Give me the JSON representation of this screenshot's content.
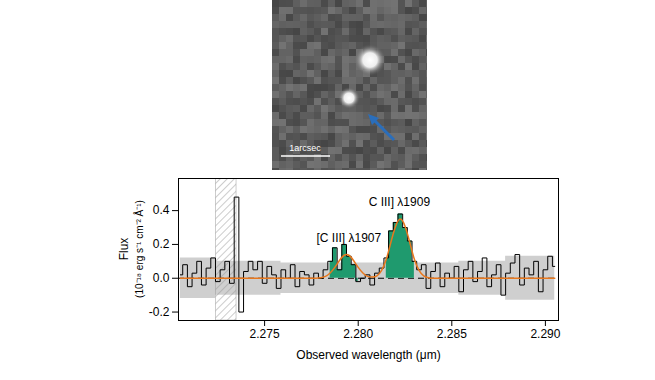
{
  "image": {
    "scale_label": "1arcsec"
  },
  "chart_data": {
    "type": "line",
    "xlabel": "Observed wavelength (μm)",
    "ylabel": [
      "Flux",
      "(10⁻¹⁸ erg s⁻¹ cm⁻² Å⁻¹)"
    ],
    "color": "#000000",
    "x": [
      2.2705,
      2.27075,
      2.271,
      2.27125,
      2.2715,
      2.27175,
      2.272,
      2.27225,
      2.2725,
      2.27275,
      2.273,
      2.27325,
      2.2735,
      2.27375,
      2.274,
      2.27425,
      2.2745,
      2.27475,
      2.275,
      2.27525,
      2.2755,
      2.27575,
      2.276,
      2.27625,
      2.2765,
      2.27675,
      2.277,
      2.27725,
      2.2775,
      2.27775,
      2.278,
      2.27825,
      2.2785,
      2.27875,
      2.279,
      2.27925,
      2.2795,
      2.27975,
      2.28,
      2.28025,
      2.2805,
      2.28075,
      2.281,
      2.28125,
      2.2815,
      2.28175,
      2.282,
      2.28225,
      2.2825,
      2.28275,
      2.283,
      2.28325,
      2.2835,
      2.28375,
      2.284,
      2.28425,
      2.2845,
      2.28475,
      2.285,
      2.28525,
      2.2855,
      2.28575,
      2.286,
      2.28625,
      2.2865,
      2.28675,
      2.287,
      2.28725,
      2.2875,
      2.28775,
      2.288,
      2.28825,
      2.2885,
      2.28875,
      2.289,
      2.28925,
      2.2895,
      2.28975,
      2.29,
      2.29025,
      2.2905
    ],
    "values": [
      0.02,
      0.08,
      -0.05,
      0.03,
      0.1,
      -0.04,
      0.06,
      0.12,
      -0.02,
      0.05,
      0.1,
      -0.03,
      0.48,
      -0.2,
      0.04,
      0.1,
      0.05,
      0.1,
      -0.03,
      0.07,
      0.02,
      -0.06,
      0.05,
      0.0,
      0.08,
      -0.05,
      0.04,
      0.02,
      -0.04,
      0.03,
      0.0,
      0.05,
      0.1,
      0.18,
      0.05,
      0.2,
      0.13,
      0.08,
      -0.02,
      0.0,
      0.02,
      -0.04,
      0.03,
      0.06,
      0.12,
      0.28,
      0.33,
      0.38,
      0.3,
      0.22,
      0.1,
      0.05,
      0.08,
      -0.06,
      0.04,
      0.09,
      -0.05,
      0.03,
      0.0,
      0.07,
      -0.08,
      0.05,
      0.1,
      -0.02,
      0.04,
      0.12,
      -0.05,
      0.02,
      0.08,
      -0.1,
      0.03,
      0.09,
      0.14,
      -0.04,
      0.06,
      0.02,
      0.1,
      -0.08,
      0.05,
      0.13,
      0.07
    ],
    "error": [
      0.12,
      0.12,
      0.12,
      0.12,
      0.12,
      0.12,
      0.12,
      0.12,
      0.1,
      0.1,
      0.1,
      0.1,
      0.1,
      0.1,
      0.1,
      0.1,
      0.1,
      0.1,
      0.1,
      0.1,
      0.1,
      0.1,
      0.09,
      0.09,
      0.09,
      0.09,
      0.09,
      0.09,
      0.09,
      0.09,
      0.09,
      0.09,
      0.09,
      0.09,
      0.09,
      0.09,
      0.09,
      0.09,
      0.09,
      0.09,
      0.09,
      0.09,
      0.09,
      0.09,
      0.09,
      0.09,
      0.09,
      0.09,
      0.09,
      0.09,
      0.09,
      0.09,
      0.09,
      0.09,
      0.09,
      0.09,
      0.09,
      0.09,
      0.09,
      0.09,
      0.1,
      0.1,
      0.1,
      0.1,
      0.1,
      0.1,
      0.1,
      0.1,
      0.1,
      0.1,
      0.13,
      0.13,
      0.13,
      0.13,
      0.13,
      0.13,
      0.13,
      0.13,
      0.13,
      0.13,
      0.13
    ],
    "error_color": "#cfcfcf",
    "fit": {
      "color": "#e8781e",
      "values": [
        0,
        0,
        0,
        0,
        0,
        0,
        0,
        0,
        0,
        0,
        0,
        0,
        0,
        0,
        0,
        0,
        0,
        0,
        0,
        0,
        0,
        0,
        0,
        0,
        0,
        0,
        0,
        0,
        0,
        0,
        0.003,
        0.011,
        0.031,
        0.064,
        0.105,
        0.136,
        0.136,
        0.105,
        0.064,
        0.031,
        0.011,
        0.007,
        0.014,
        0.047,
        0.112,
        0.214,
        0.308,
        0.35,
        0.308,
        0.214,
        0.112,
        0.047,
        0.014,
        0.0035,
        0,
        0,
        0,
        0,
        0,
        0,
        0,
        0,
        0,
        0,
        0,
        0,
        0,
        0,
        0,
        0,
        0,
        0,
        0,
        0,
        0,
        0,
        0,
        0,
        0,
        0,
        0
      ]
    },
    "fill_regions": [
      [
        2.2785,
        2.28
      ],
      [
        2.2813,
        2.283
      ]
    ],
    "fill_color": "#1f9a6e",
    "masked_range": [
      2.2724,
      2.2735
    ],
    "hline": 0,
    "annotations": [
      {
        "text": "[C III] λ1907",
        "x": 2.2795,
        "y": 0.24
      },
      {
        "text": "C III] λ1909",
        "x": 2.2822,
        "y": 0.45
      }
    ],
    "xlim": [
      2.2704,
      2.2907
    ],
    "ylim": [
      -0.25,
      0.59
    ],
    "xticks": [
      {
        "value": 2.275,
        "label": "2.275"
      },
      {
        "value": 2.28,
        "label": "2.280"
      },
      {
        "value": 2.285,
        "label": "2.285"
      },
      {
        "value": 2.29,
        "label": "2.290"
      }
    ],
    "yticks": [
      -0.2,
      {
        "value": 0,
        "label": "0.0"
      },
      0.2,
      0.4
    ]
  }
}
